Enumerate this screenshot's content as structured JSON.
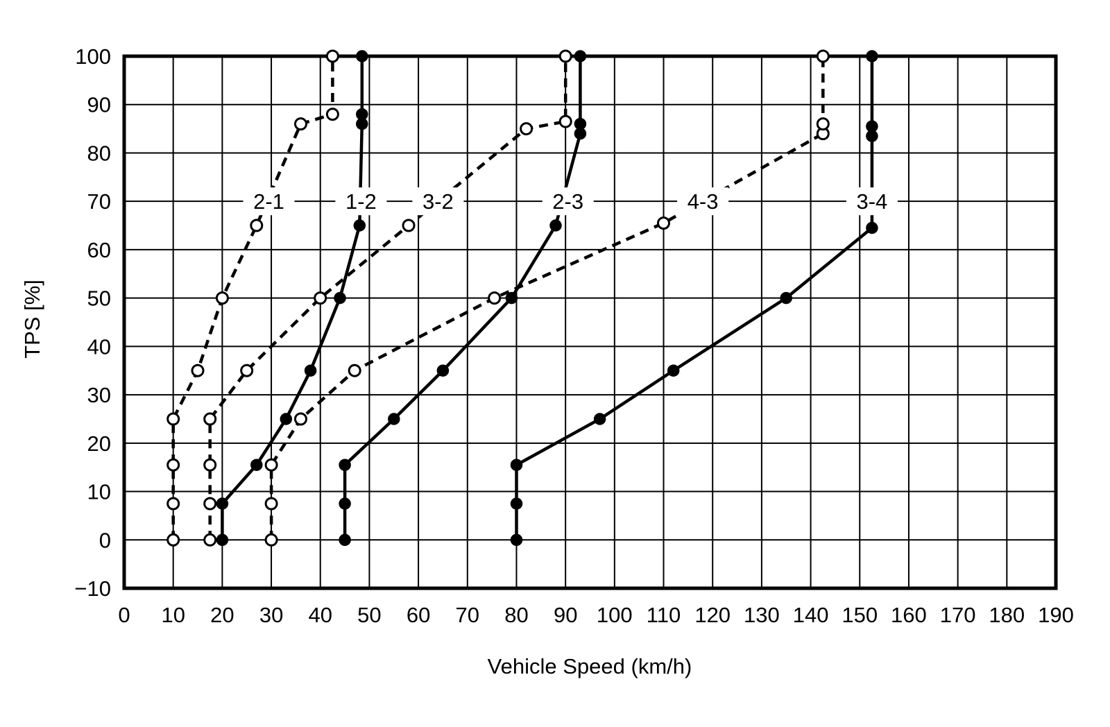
{
  "page": {
    "background": "#ffffff",
    "ink": "#000000",
    "description": "Automatic transmission shift schedule map: TPS vs vehicle speed with upshift (solid, filled markers) and downshift (dashed, open markers) curves"
  },
  "chart_data": {
    "type": "line",
    "title": "",
    "xlabel": "Vehicle Speed (km/h)",
    "ylabel": "TPS [%]",
    "xlim": [
      0,
      190
    ],
    "ylim": [
      -10,
      100
    ],
    "x_tick_step": 10,
    "y_tick_step": 10,
    "grid": true,
    "legend_position": "none",
    "line_color": "#000000",
    "x_ticks": [
      {
        "value": 0,
        "label": "0"
      },
      {
        "value": 10,
        "label": "10"
      },
      {
        "value": 20,
        "label": "20"
      },
      {
        "value": 30,
        "label": "30"
      },
      {
        "value": 40,
        "label": "40"
      },
      {
        "value": 50,
        "label": "50"
      },
      {
        "value": 60,
        "label": "60"
      },
      {
        "value": 70,
        "label": "70"
      },
      {
        "value": 80,
        "label": "80"
      },
      {
        "value": 90,
        "label": "90"
      },
      {
        "value": 100,
        "label": "100"
      },
      {
        "value": 110,
        "label": "110"
      },
      {
        "value": 120,
        "label": "120"
      },
      {
        "value": 130,
        "label": "130"
      },
      {
        "value": 140,
        "label": "140"
      },
      {
        "value": 150,
        "label": "150"
      },
      {
        "value": 160,
        "label": "160"
      },
      {
        "value": 170,
        "label": "170"
      },
      {
        "value": 180,
        "label": "180"
      },
      {
        "value": 190,
        "label": "190"
      }
    ],
    "y_ticks": [
      {
        "value": 100,
        "label": "100"
      },
      {
        "value": 90,
        "label": "90"
      },
      {
        "value": 80,
        "label": "80"
      },
      {
        "value": 70,
        "label": "70"
      },
      {
        "value": 60,
        "label": "60"
      },
      {
        "value": 50,
        "label": "50"
      },
      {
        "value": 40,
        "label": "40"
      },
      {
        "value": 30,
        "label": "30"
      },
      {
        "value": 20,
        "label": "20"
      },
      {
        "value": 10,
        "label": "10"
      },
      {
        "value": 0,
        "label": "0"
      },
      {
        "value": -10,
        "label": "−10"
      }
    ],
    "series": [
      {
        "id": "2-1",
        "label": "2-1",
        "shift_type": "downshift",
        "line_style": "dashed",
        "marker": "open-circle",
        "label_x": 29.5,
        "label_y": 70,
        "points": [
          [
            10,
            0
          ],
          [
            10,
            7.5
          ],
          [
            10,
            15.5
          ],
          [
            10,
            25
          ],
          [
            15,
            35
          ],
          [
            20,
            50
          ],
          [
            27,
            65
          ],
          [
            36,
            86
          ],
          [
            42.5,
            88
          ],
          [
            42.5,
            100
          ]
        ]
      },
      {
        "id": "1-2",
        "label": "1-2",
        "shift_type": "upshift",
        "line_style": "solid",
        "marker": "filled-circle",
        "label_x": 48.3,
        "label_y": 70,
        "points": [
          [
            20,
            0
          ],
          [
            20,
            7.5
          ],
          [
            27,
            15.5
          ],
          [
            33,
            25
          ],
          [
            38,
            35
          ],
          [
            44,
            50
          ],
          [
            48,
            65
          ],
          [
            48.5,
            86
          ],
          [
            48.5,
            88
          ],
          [
            48.5,
            100
          ]
        ]
      },
      {
        "id": "3-2",
        "label": "3-2",
        "shift_type": "downshift",
        "line_style": "dashed",
        "marker": "open-circle",
        "label_x": 64,
        "label_y": 70,
        "points": [
          [
            17.5,
            0
          ],
          [
            17.5,
            7.5
          ],
          [
            17.5,
            15.5
          ],
          [
            17.5,
            25
          ],
          [
            25,
            35
          ],
          [
            40,
            50
          ],
          [
            58,
            65
          ],
          [
            82,
            85
          ],
          [
            90,
            86.5
          ],
          [
            90,
            100
          ]
        ]
      },
      {
        "id": "2-3",
        "label": "2-3",
        "shift_type": "upshift",
        "line_style": "solid",
        "marker": "filled-circle",
        "label_x": 90.5,
        "label_y": 70,
        "points": [
          [
            45,
            0
          ],
          [
            45,
            7.5
          ],
          [
            45,
            15.5
          ],
          [
            55,
            25
          ],
          [
            65,
            35
          ],
          [
            79,
            50
          ],
          [
            88,
            65
          ],
          [
            93,
            84
          ],
          [
            93,
            86
          ],
          [
            93,
            100
          ]
        ]
      },
      {
        "id": "4-3",
        "label": "4-3",
        "shift_type": "downshift",
        "line_style": "dashed",
        "marker": "open-circle",
        "label_x": 118,
        "label_y": 70,
        "points": [
          [
            30,
            0
          ],
          [
            30,
            7.5
          ],
          [
            30,
            15.5
          ],
          [
            36,
            25
          ],
          [
            47,
            35
          ],
          [
            75.5,
            50
          ],
          [
            110,
            65.5
          ],
          [
            142.5,
            84
          ],
          [
            142.5,
            86
          ],
          [
            142.5,
            100
          ]
        ]
      },
      {
        "id": "3-4",
        "label": "3-4",
        "shift_type": "upshift",
        "line_style": "solid",
        "marker": "filled-circle",
        "label_x": 152.5,
        "label_y": 70,
        "points": [
          [
            80,
            0
          ],
          [
            80,
            7.5
          ],
          [
            80,
            15.5
          ],
          [
            97,
            25
          ],
          [
            112,
            35
          ],
          [
            135,
            50
          ],
          [
            152.5,
            64.5
          ],
          [
            152.5,
            83.5
          ],
          [
            152.5,
            85.5
          ],
          [
            152.5,
            100
          ]
        ]
      }
    ]
  }
}
